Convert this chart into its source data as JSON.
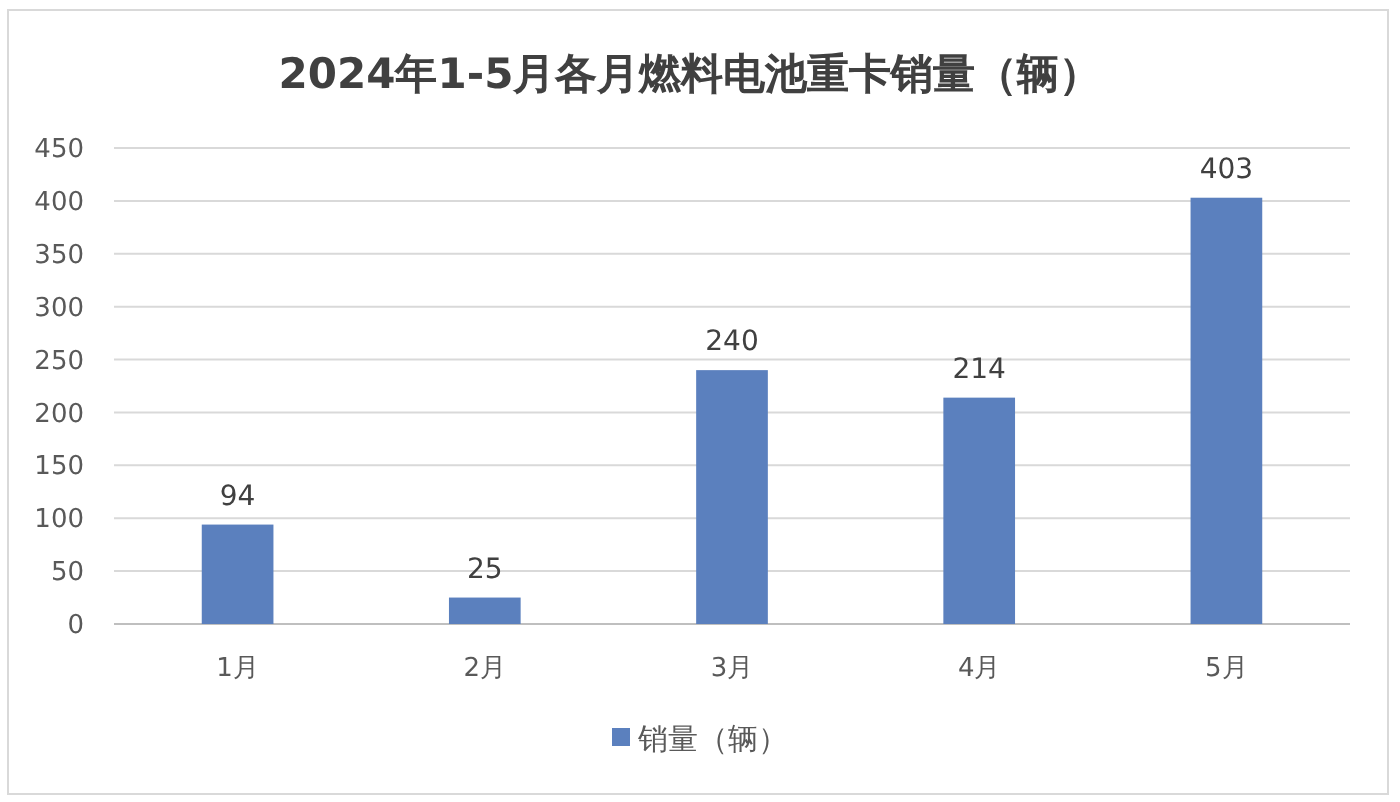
{
  "chart_data": {
    "type": "bar",
    "title": "2024年1-5月各月燃料电池重卡销量（辆）",
    "categories": [
      "1月",
      "2月",
      "3月",
      "4月",
      "5月"
    ],
    "series": [
      {
        "name": "销量（辆）",
        "color": "#5b80be",
        "values": [
          94,
          25,
          240,
          214,
          403
        ]
      }
    ],
    "ylim": [
      0,
      450
    ],
    "yticks": [
      0,
      50,
      100,
      150,
      200,
      250,
      300,
      350,
      400,
      450
    ],
    "grid": "y",
    "legend": "bottom",
    "data_labels": true
  }
}
